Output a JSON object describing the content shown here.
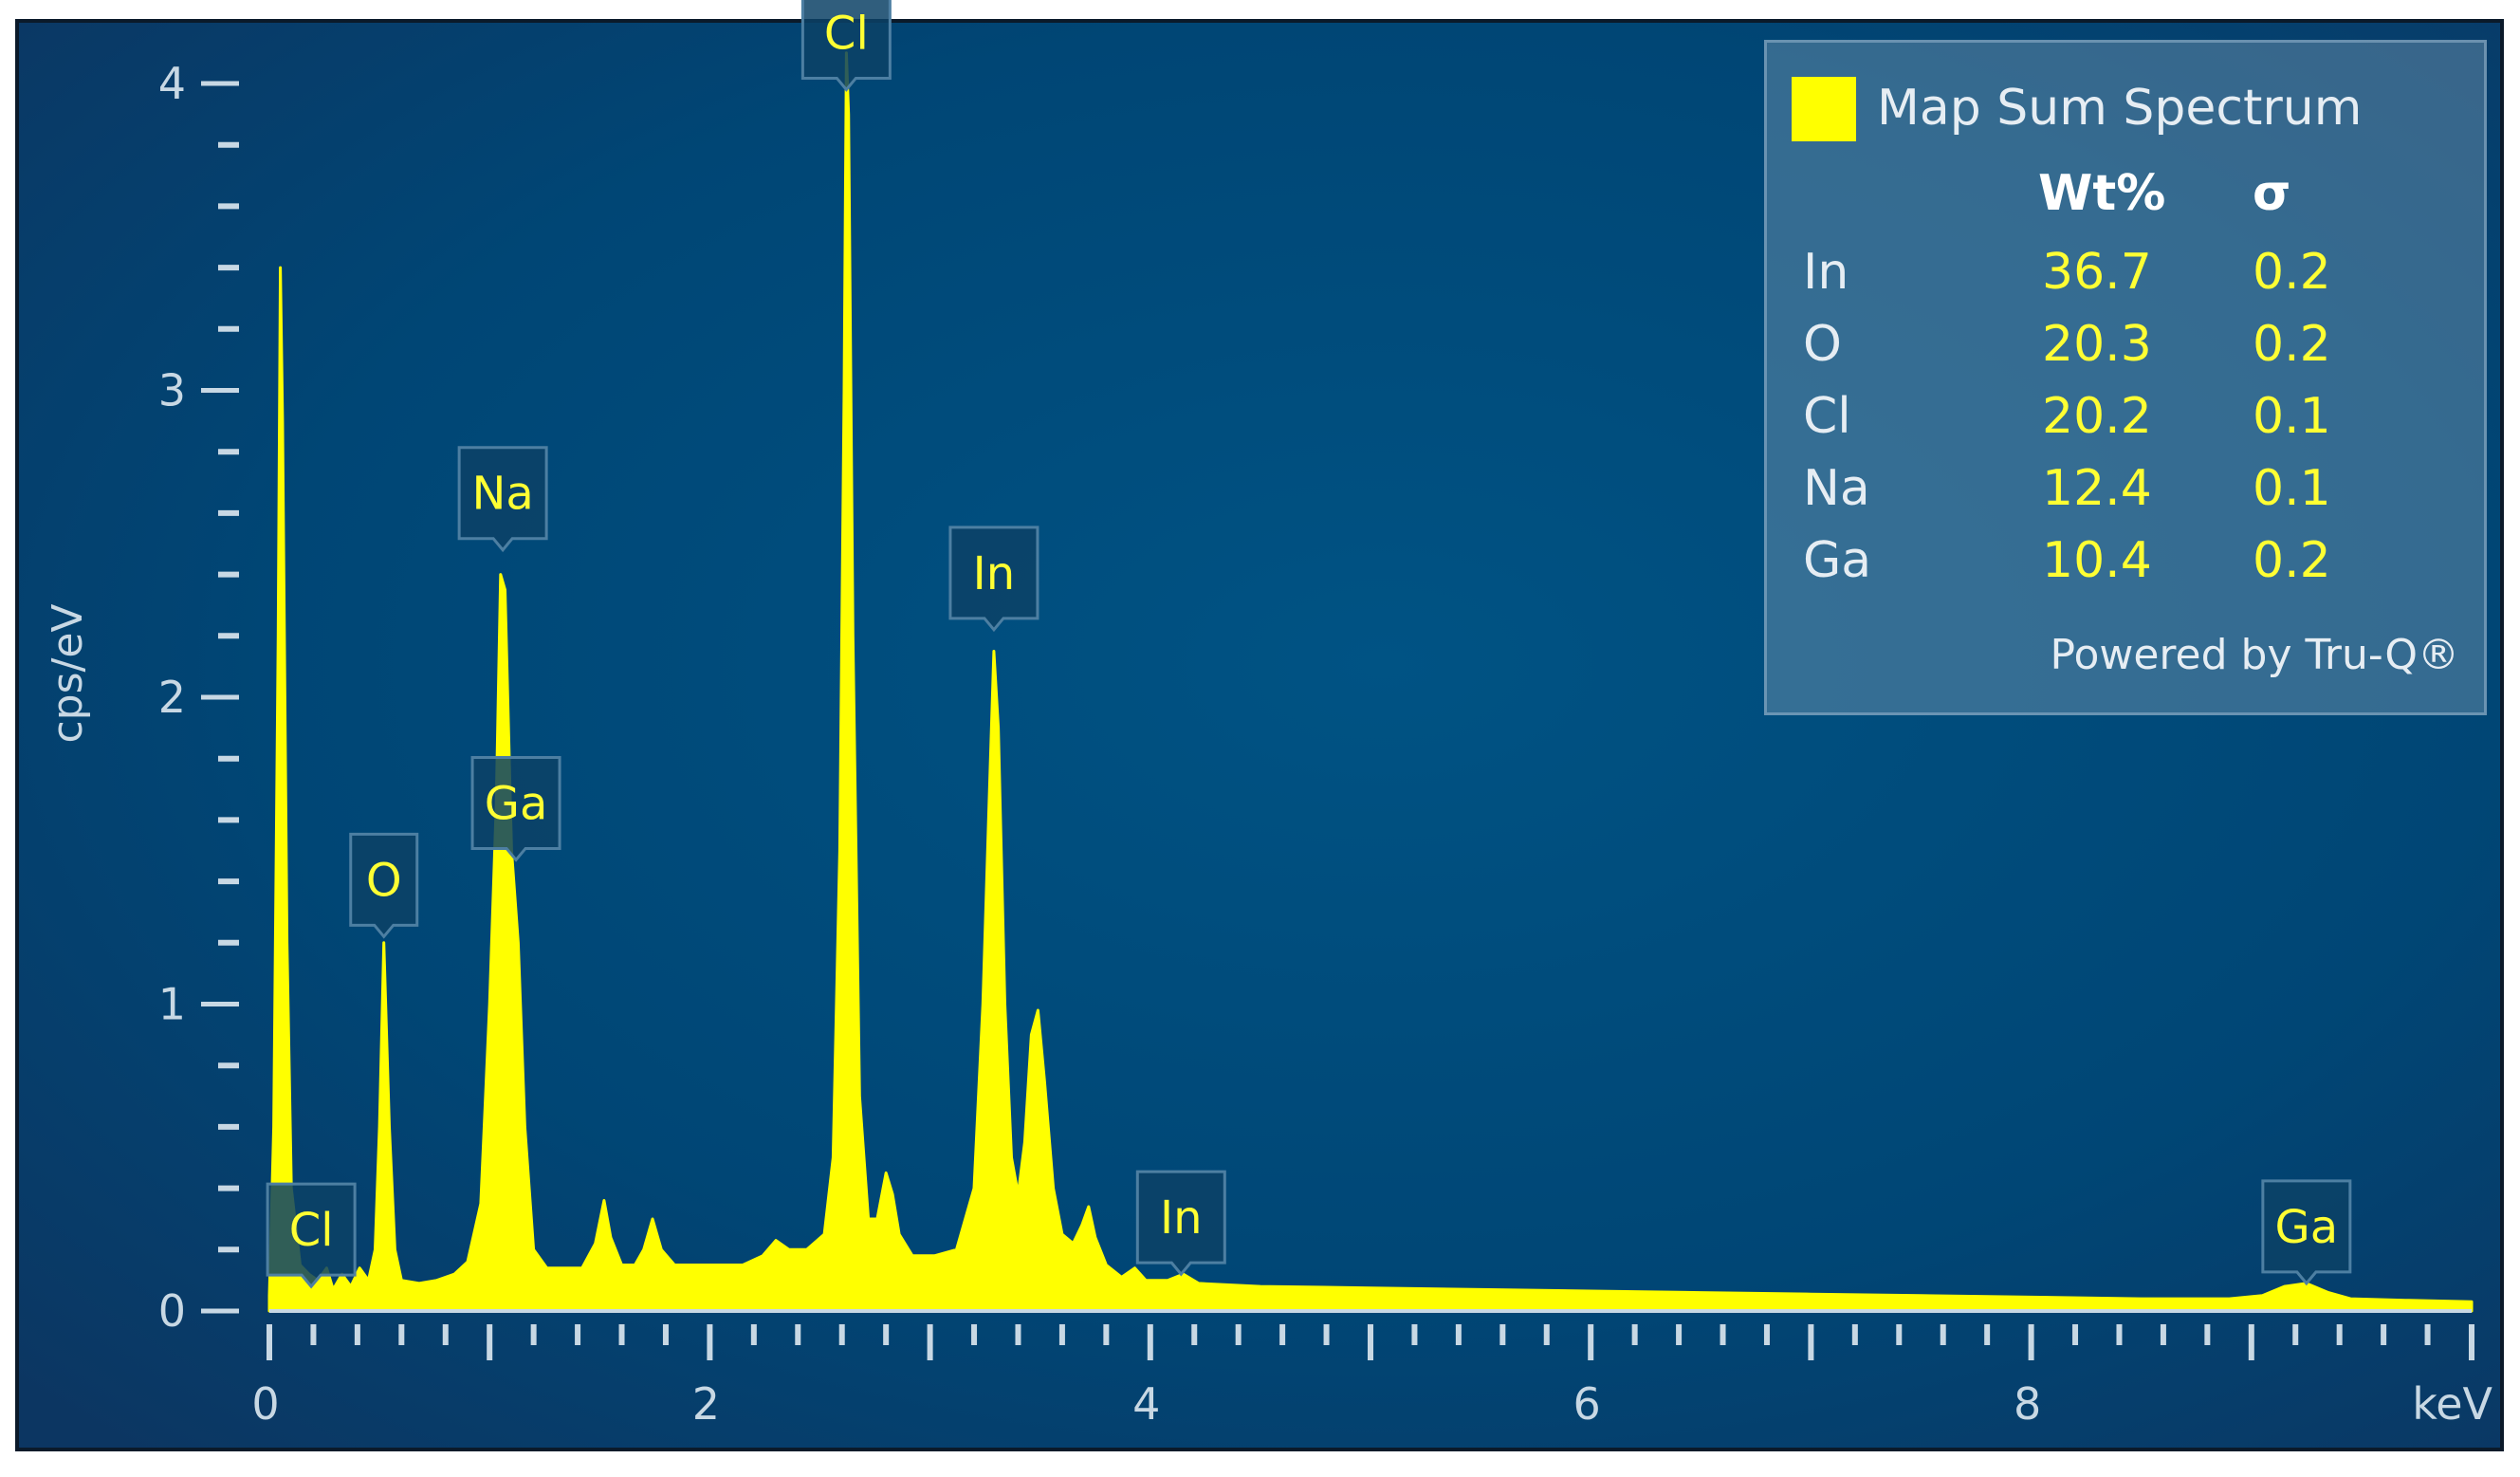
{
  "chart_data": {
    "type": "area",
    "xlabel": "keV",
    "ylabel": "cps/eV",
    "xlim": [
      0,
      10
    ],
    "ylim": [
      0,
      4.0
    ],
    "x_ticks": [
      0,
      2,
      4,
      6,
      8
    ],
    "y_ticks": [
      0,
      1,
      2,
      3,
      4
    ],
    "grid": false,
    "colors": {
      "background_top": "#0a3a66",
      "background_mid": "#005080",
      "frame": "#0b1a2a",
      "spectrum": "#ffff00",
      "axis": "#c8d8e4",
      "peak_label_bg": "#0c4266",
      "peak_label_border": "#4d7fa2",
      "peak_label_text": "#ffff33"
    },
    "series": [
      {
        "name": "Map Sum Spectrum",
        "points": [
          [
            0.0,
            0.05
          ],
          [
            0.02,
            0.6
          ],
          [
            0.04,
            2.2
          ],
          [
            0.05,
            3.4
          ],
          [
            0.06,
            2.9
          ],
          [
            0.08,
            1.2
          ],
          [
            0.1,
            0.4
          ],
          [
            0.14,
            0.15
          ],
          [
            0.18,
            0.12
          ],
          [
            0.22,
            0.1
          ],
          [
            0.26,
            0.14
          ],
          [
            0.29,
            0.07
          ],
          [
            0.33,
            0.12
          ],
          [
            0.37,
            0.08
          ],
          [
            0.41,
            0.14
          ],
          [
            0.45,
            0.1
          ],
          [
            0.48,
            0.2
          ],
          [
            0.5,
            0.6
          ],
          [
            0.52,
            1.2
          ],
          [
            0.545,
            0.6
          ],
          [
            0.57,
            0.2
          ],
          [
            0.6,
            0.1
          ],
          [
            0.68,
            0.09
          ],
          [
            0.76,
            0.1
          ],
          [
            0.84,
            0.12
          ],
          [
            0.9,
            0.16
          ],
          [
            0.96,
            0.35
          ],
          [
            1.0,
            1.0
          ],
          [
            1.03,
            1.65
          ],
          [
            1.05,
            2.4
          ],
          [
            1.07,
            2.35
          ],
          [
            1.1,
            1.5
          ],
          [
            1.13,
            1.2
          ],
          [
            1.16,
            0.6
          ],
          [
            1.2,
            0.2
          ],
          [
            1.26,
            0.14
          ],
          [
            1.34,
            0.14
          ],
          [
            1.42,
            0.14
          ],
          [
            1.48,
            0.22
          ],
          [
            1.52,
            0.36
          ],
          [
            1.55,
            0.24
          ],
          [
            1.6,
            0.15
          ],
          [
            1.66,
            0.15
          ],
          [
            1.7,
            0.2
          ],
          [
            1.74,
            0.3
          ],
          [
            1.78,
            0.2
          ],
          [
            1.84,
            0.15
          ],
          [
            1.95,
            0.15
          ],
          [
            2.05,
            0.15
          ],
          [
            2.15,
            0.15
          ],
          [
            2.24,
            0.18
          ],
          [
            2.3,
            0.23
          ],
          [
            2.36,
            0.2
          ],
          [
            2.44,
            0.2
          ],
          [
            2.52,
            0.25
          ],
          [
            2.56,
            0.5
          ],
          [
            2.59,
            1.5
          ],
          [
            2.61,
            3.0
          ],
          [
            2.62,
            4.1
          ],
          [
            2.63,
            3.9
          ],
          [
            2.65,
            2.2
          ],
          [
            2.68,
            0.7
          ],
          [
            2.72,
            0.3
          ],
          [
            2.76,
            0.3
          ],
          [
            2.8,
            0.45
          ],
          [
            2.83,
            0.38
          ],
          [
            2.86,
            0.25
          ],
          [
            2.92,
            0.18
          ],
          [
            3.02,
            0.18
          ],
          [
            3.12,
            0.2
          ],
          [
            3.2,
            0.4
          ],
          [
            3.24,
            1.0
          ],
          [
            3.27,
            1.7
          ],
          [
            3.29,
            2.15
          ],
          [
            3.31,
            1.9
          ],
          [
            3.34,
            1.0
          ],
          [
            3.37,
            0.5
          ],
          [
            3.4,
            0.38
          ],
          [
            3.43,
            0.55
          ],
          [
            3.46,
            0.9
          ],
          [
            3.49,
            0.98
          ],
          [
            3.52,
            0.75
          ],
          [
            3.56,
            0.4
          ],
          [
            3.6,
            0.25
          ],
          [
            3.65,
            0.22
          ],
          [
            3.69,
            0.28
          ],
          [
            3.72,
            0.34
          ],
          [
            3.75,
            0.24
          ],
          [
            3.8,
            0.15
          ],
          [
            3.87,
            0.11
          ],
          [
            3.93,
            0.14
          ],
          [
            3.98,
            0.1
          ],
          [
            4.08,
            0.1
          ],
          [
            4.15,
            0.12
          ],
          [
            4.22,
            0.09
          ],
          [
            4.5,
            0.08
          ],
          [
            5.0,
            0.075
          ],
          [
            5.5,
            0.07
          ],
          [
            6.0,
            0.065
          ],
          [
            6.5,
            0.06
          ],
          [
            7.0,
            0.055
          ],
          [
            7.5,
            0.05
          ],
          [
            8.0,
            0.045
          ],
          [
            8.5,
            0.04
          ],
          [
            8.9,
            0.04
          ],
          [
            9.05,
            0.05
          ],
          [
            9.15,
            0.08
          ],
          [
            9.25,
            0.09
          ],
          [
            9.35,
            0.06
          ],
          [
            9.45,
            0.04
          ],
          [
            9.7,
            0.035
          ],
          [
            10.0,
            0.03
          ]
        ]
      }
    ],
    "peak_labels": [
      {
        "label": "Cl",
        "x": 0.19,
        "y": 0.08
      },
      {
        "label": "O",
        "x": 0.52,
        "y": 1.22
      },
      {
        "label": "Na",
        "x": 1.06,
        "y": 2.48
      },
      {
        "label": "Ga",
        "x": 1.12,
        "y": 1.47
      },
      {
        "label": "Cl",
        "x": 2.62,
        "y": 3.98
      },
      {
        "label": "In",
        "x": 3.29,
        "y": 2.22
      },
      {
        "label": "In",
        "x": 4.14,
        "y": 0.12
      },
      {
        "label": "Ga",
        "x": 9.25,
        "y": 0.09
      }
    ]
  },
  "legend": {
    "title": "Map Sum Spectrum",
    "col_wt": "Wt%",
    "col_sigma": "σ",
    "rows": [
      {
        "element": "In",
        "wt": "36.7",
        "sigma": "0.2"
      },
      {
        "element": "O",
        "wt": "20.3",
        "sigma": "0.2"
      },
      {
        "element": "Cl",
        "wt": "20.2",
        "sigma": "0.1"
      },
      {
        "element": "Na",
        "wt": "12.4",
        "sigma": "0.1"
      },
      {
        "element": "Ga",
        "wt": "10.4",
        "sigma": "0.2"
      }
    ],
    "footer": "Powered by Tru-Q®"
  }
}
